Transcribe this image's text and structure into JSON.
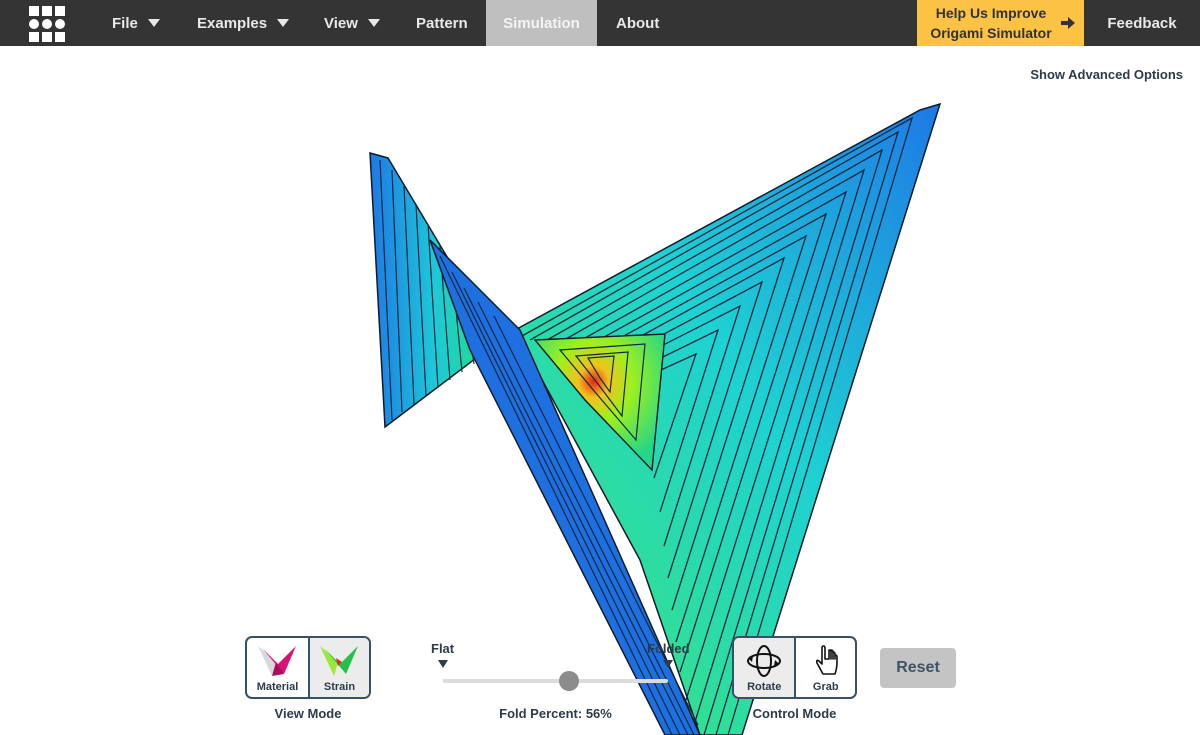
{
  "nav": {
    "file": "File",
    "examples": "Examples",
    "view": "View",
    "pattern": "Pattern",
    "simulation": "Simulation",
    "about": "About"
  },
  "help": {
    "line1": "Help Us Improve",
    "line2": "Origami Simulator"
  },
  "feedback": "Feedback",
  "advanced_options": "Show Advanced Options",
  "view_mode": {
    "label": "View Mode",
    "material": "Material",
    "strain": "Strain",
    "selected": "Strain"
  },
  "fold": {
    "flat": "Flat",
    "folded": "Folded",
    "percent_text": "Fold Percent: 56%",
    "percent": 56
  },
  "control_mode": {
    "label": "Control Mode",
    "rotate": "Rotate",
    "grab": "Grab",
    "selected": "Rotate"
  },
  "reset": "Reset",
  "colors": {
    "topbar": "#343434",
    "active_tab": "#bfbfbf",
    "help_bg": "#fbc244",
    "strain_low": "#1e78e6",
    "strain_mid": "#22e66e",
    "strain_high": "#e8261a"
  },
  "icons": {
    "logo": "grid-logo-icon",
    "help_arrow": "arrow-right-icon",
    "material": "material-fold-icon",
    "strain": "strain-fold-icon",
    "rotate": "rotate-icon",
    "grab": "hand-icon"
  }
}
